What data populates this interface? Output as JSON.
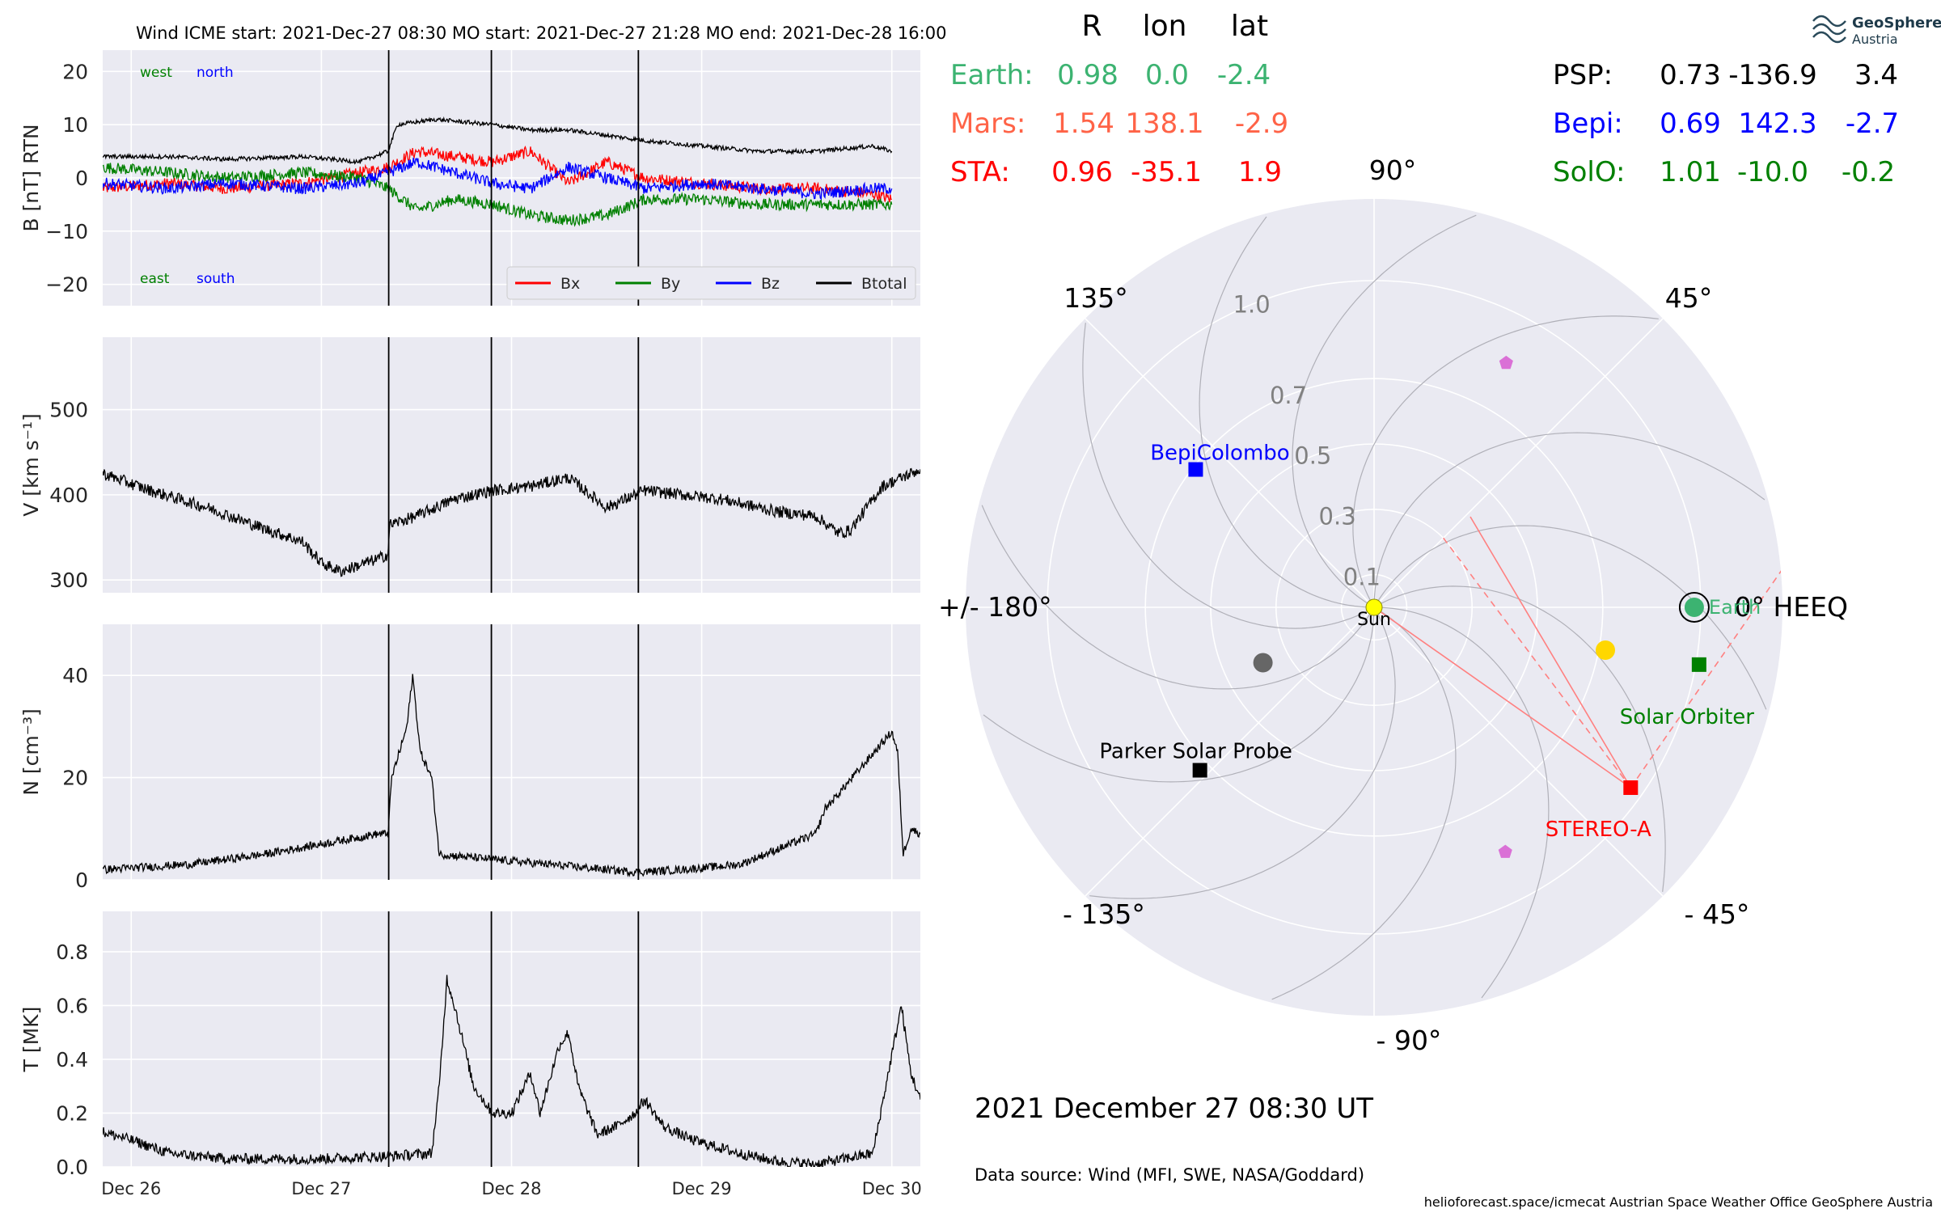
{
  "header": {
    "title": "Wind    ICME start: 2021-Dec-27 08:30   MO start: 2021-Dec-27 21:28   MO end: 2021-Dec-28 16:00"
  },
  "logo": {
    "line1": "GeoSphere",
    "line2": "Austria"
  },
  "positions_table": {
    "headers": [
      "R",
      "lon",
      "lat"
    ],
    "left_rows": [
      {
        "name": "Earth:",
        "r": "0.98",
        "lon": "0.0",
        "lat": "-2.4",
        "color": "#3cb371"
      },
      {
        "name": "Mars:",
        "r": "1.54",
        "lon": "138.1",
        "lat": "-2.9",
        "color": "#ff6347"
      },
      {
        "name": "STA:",
        "r": "0.96",
        "lon": "-35.1",
        "lat": "1.9",
        "color": "#ff0000"
      }
    ],
    "right_rows": [
      {
        "name": "PSP:",
        "r": "0.73",
        "lon": "-136.9",
        "lat": "3.4",
        "color": "#000000"
      },
      {
        "name": "Bepi:",
        "r": "0.69",
        "lon": "142.3",
        "lat": "-2.7",
        "color": "#0000ff"
      },
      {
        "name": "SolO:",
        "r": "1.01",
        "lon": "-10.0",
        "lat": "-0.2",
        "color": "#008000"
      }
    ]
  },
  "footer": {
    "date": "2021 December 27  08:30 UT",
    "source": "Data source: Wind (MFI, SWE, NASA/Goddard)",
    "credits": "helioforecast.space/icmecat   Austrian Space Weather Office   GeoSphere Austria"
  },
  "chart_data": [
    {
      "type": "line",
      "panel": "B",
      "ylabel": "B [nT] RTN",
      "ylim": [
        -24,
        24
      ],
      "yticks": [
        "20",
        "10",
        "0",
        "−10",
        "−20"
      ],
      "ytick_values": [
        20,
        10,
        0,
        -10,
        -20
      ],
      "xlim_days": [
        25.85,
        30.15
      ],
      "xticks": [
        "Dec 26",
        "Dec 27",
        "Dec 28",
        "Dec 29",
        "Dec 30"
      ],
      "xtick_days": [
        26,
        27,
        28,
        29,
        30
      ],
      "event_lines_days": [
        27.354,
        27.894,
        28.667
      ],
      "corner_labels": {
        "west": "west",
        "north": "north",
        "east": "east",
        "south": "south"
      },
      "legend": [
        "Bx",
        "By",
        "Bz",
        "Btotal"
      ],
      "series": [
        {
          "name": "Bx",
          "color": "#ff0000",
          "values": [
            [
              25.85,
              -2
            ],
            [
              26.2,
              -1
            ],
            [
              26.5,
              -2
            ],
            [
              26.9,
              -1
            ],
            [
              27.2,
              1
            ],
            [
              27.35,
              2
            ],
            [
              27.5,
              5
            ],
            [
              27.7,
              4
            ],
            [
              27.9,
              3
            ],
            [
              28.1,
              5
            ],
            [
              28.3,
              -1
            ],
            [
              28.5,
              3
            ],
            [
              28.7,
              0
            ],
            [
              29.0,
              -1
            ],
            [
              29.3,
              -2
            ],
            [
              29.6,
              -2
            ],
            [
              29.9,
              -3
            ],
            [
              30.0,
              -4
            ]
          ]
        },
        {
          "name": "By",
          "color": "#008000",
          "values": [
            [
              25.85,
              2
            ],
            [
              26.2,
              1
            ],
            [
              26.5,
              0
            ],
            [
              26.9,
              1
            ],
            [
              27.2,
              0
            ],
            [
              27.35,
              -2
            ],
            [
              27.5,
              -6
            ],
            [
              27.7,
              -4
            ],
            [
              27.9,
              -5
            ],
            [
              28.1,
              -7
            ],
            [
              28.3,
              -8
            ],
            [
              28.5,
              -7
            ],
            [
              28.7,
              -4
            ],
            [
              29.0,
              -4
            ],
            [
              29.3,
              -5
            ],
            [
              29.6,
              -5
            ],
            [
              29.9,
              -5
            ],
            [
              30.0,
              -5
            ]
          ]
        },
        {
          "name": "Bz",
          "color": "#0000ff",
          "values": [
            [
              25.85,
              -1
            ],
            [
              26.2,
              -2
            ],
            [
              26.5,
              -1
            ],
            [
              26.9,
              -2
            ],
            [
              27.2,
              -1
            ],
            [
              27.35,
              1
            ],
            [
              27.5,
              3
            ],
            [
              27.7,
              1
            ],
            [
              27.9,
              -1
            ],
            [
              28.1,
              -2
            ],
            [
              28.3,
              2
            ],
            [
              28.5,
              0
            ],
            [
              28.7,
              -2
            ],
            [
              29.0,
              -1
            ],
            [
              29.3,
              -2
            ],
            [
              29.6,
              -3
            ],
            [
              29.9,
              -2
            ],
            [
              30.0,
              -2
            ]
          ]
        },
        {
          "name": "Btotal",
          "color": "#000000",
          "values": [
            [
              25.85,
              4
            ],
            [
              26.2,
              4
            ],
            [
              26.5,
              3.5
            ],
            [
              26.9,
              4
            ],
            [
              27.2,
              3
            ],
            [
              27.35,
              5
            ],
            [
              27.4,
              10
            ],
            [
              27.6,
              11
            ],
            [
              27.9,
              10
            ],
            [
              28.1,
              9
            ],
            [
              28.3,
              9
            ],
            [
              28.5,
              8
            ],
            [
              28.7,
              7
            ],
            [
              29.0,
              6
            ],
            [
              29.3,
              5
            ],
            [
              29.6,
              5
            ],
            [
              29.9,
              6
            ],
            [
              30.0,
              5
            ]
          ]
        }
      ]
    },
    {
      "type": "line",
      "panel": "V",
      "ylabel": "V [km s⁻¹]",
      "ylim": [
        285,
        585
      ],
      "yticks": [
        "500",
        "400",
        "300"
      ],
      "ytick_values": [
        500,
        400,
        300
      ],
      "event_lines_days": [
        27.354,
        27.894,
        28.667
      ],
      "series": [
        {
          "name": "V",
          "color": "#000000",
          "values": [
            [
              25.85,
              425
            ],
            [
              26.1,
              405
            ],
            [
              26.4,
              385
            ],
            [
              26.7,
              360
            ],
            [
              26.9,
              345
            ],
            [
              27.0,
              320
            ],
            [
              27.1,
              310
            ],
            [
              27.3,
              325
            ],
            [
              27.35,
              330
            ],
            [
              27.36,
              365
            ],
            [
              27.5,
              375
            ],
            [
              27.7,
              395
            ],
            [
              27.9,
              405
            ],
            [
              28.1,
              410
            ],
            [
              28.3,
              420
            ],
            [
              28.5,
              385
            ],
            [
              28.7,
              405
            ],
            [
              28.9,
              400
            ],
            [
              29.1,
              395
            ],
            [
              29.4,
              380
            ],
            [
              29.6,
              375
            ],
            [
              29.72,
              355
            ],
            [
              29.78,
              358
            ],
            [
              29.95,
              410
            ],
            [
              30.05,
              420
            ],
            [
              30.15,
              430
            ]
          ]
        }
      ]
    },
    {
      "type": "line",
      "panel": "N",
      "ylabel": "N [cm⁻³]",
      "ylim": [
        0,
        50
      ],
      "yticks": [
        "40",
        "20",
        "0"
      ],
      "ytick_values": [
        40,
        20,
        0
      ],
      "event_lines_days": [
        27.354,
        27.894,
        28.667
      ],
      "series": [
        {
          "name": "N",
          "color": "#000000",
          "values": [
            [
              25.85,
              2
            ],
            [
              26.3,
              3
            ],
            [
              26.7,
              5
            ],
            [
              27.0,
              7
            ],
            [
              27.3,
              9
            ],
            [
              27.35,
              9
            ],
            [
              27.37,
              20
            ],
            [
              27.45,
              30
            ],
            [
              27.48,
              40
            ],
            [
              27.52,
              25
            ],
            [
              27.58,
              20
            ],
            [
              27.62,
              5
            ],
            [
              27.9,
              4
            ],
            [
              28.2,
              3
            ],
            [
              28.5,
              2
            ],
            [
              28.66,
              1.5
            ],
            [
              28.9,
              2
            ],
            [
              29.2,
              3
            ],
            [
              29.4,
              6
            ],
            [
              29.6,
              9
            ],
            [
              29.65,
              14
            ],
            [
              29.7,
              16
            ],
            [
              30.0,
              29
            ],
            [
              30.03,
              25
            ],
            [
              30.06,
              5
            ],
            [
              30.1,
              10
            ],
            [
              30.15,
              9
            ]
          ]
        }
      ]
    },
    {
      "type": "line",
      "panel": "T",
      "ylabel": "T [MK]",
      "ylim": [
        0,
        0.95
      ],
      "yticks": [
        "0.8",
        "0.6",
        "0.4",
        "0.2",
        "0.0"
      ],
      "ytick_values": [
        0.8,
        0.6,
        0.4,
        0.2,
        0
      ],
      "event_lines_days": [
        27.354,
        27.894,
        28.667
      ],
      "series": [
        {
          "name": "T",
          "color": "#000000",
          "values": [
            [
              25.85,
              0.13
            ],
            [
              26.0,
              0.1
            ],
            [
              26.2,
              0.05
            ],
            [
              26.5,
              0.03
            ],
            [
              27.0,
              0.03
            ],
            [
              27.35,
              0.04
            ],
            [
              27.58,
              0.05
            ],
            [
              27.62,
              0.3
            ],
            [
              27.66,
              0.7
            ],
            [
              27.7,
              0.6
            ],
            [
              27.8,
              0.3
            ],
            [
              27.9,
              0.2
            ],
            [
              28.0,
              0.2
            ],
            [
              28.1,
              0.35
            ],
            [
              28.15,
              0.2
            ],
            [
              28.25,
              0.45
            ],
            [
              28.3,
              0.5
            ],
            [
              28.35,
              0.3
            ],
            [
              28.45,
              0.12
            ],
            [
              28.55,
              0.15
            ],
            [
              28.65,
              0.2
            ],
            [
              28.7,
              0.25
            ],
            [
              28.8,
              0.15
            ],
            [
              28.95,
              0.1
            ],
            [
              29.2,
              0.05
            ],
            [
              29.4,
              0.02
            ],
            [
              29.6,
              0.01
            ],
            [
              29.9,
              0.05
            ],
            [
              30.05,
              0.6
            ],
            [
              30.1,
              0.35
            ],
            [
              30.15,
              0.25
            ]
          ]
        }
      ]
    },
    {
      "type": "scatter",
      "panel": "polar",
      "r_ticks": [
        "0.1",
        "0.3",
        "0.5",
        "0.7",
        "1.0"
      ],
      "r_tick_values": [
        0.1,
        0.3,
        0.5,
        0.7,
        1.0
      ],
      "angle_labels": {
        "a0": "0° HEEQ",
        "a45": "45°",
        "a90": "90°",
        "a135": "135°",
        "a180": "+/- 180°",
        "am135": "- 135°",
        "am90": "- 90°",
        "am45": "- 45°"
      },
      "objects": [
        {
          "name": "Sun",
          "label": "Sun",
          "r": 0,
          "lon": 0,
          "color": "#ffff00",
          "marker": "circle"
        },
        {
          "name": "Earth",
          "label": "Earth",
          "r": 0.98,
          "lon": 0.0,
          "color": "#3cb371",
          "marker": "circle"
        },
        {
          "name": "STEREO-A",
          "label": "STEREO-A",
          "r": 0.96,
          "lon": -35.1,
          "color": "#ff0000",
          "marker": "square"
        },
        {
          "name": "Solar Orbiter",
          "label": "Solar Orbiter",
          "r": 1.01,
          "lon": -10.0,
          "color": "#008000",
          "marker": "square"
        },
        {
          "name": "BepiColombo",
          "label": "BepiColombo",
          "r": 0.69,
          "lon": 142.3,
          "color": "#0000ff",
          "marker": "square"
        },
        {
          "name": "Parker Solar Probe",
          "label": "Parker Solar Probe",
          "r": 0.73,
          "lon": -136.9,
          "color": "#000000",
          "marker": "square"
        },
        {
          "name": "Venus",
          "label": "",
          "r": 0.72,
          "lon": -10.5,
          "color": "#ffd700",
          "marker": "circle"
        },
        {
          "name": "Mercury",
          "label": "",
          "r": 0.38,
          "lon": -153.5,
          "color": "#666666",
          "marker": "circle"
        },
        {
          "name": "marker-north",
          "label": "",
          "r": 0.85,
          "lon": 61.6,
          "color": "#da70d6",
          "marker": "pentagon"
        },
        {
          "name": "marker-south",
          "label": "",
          "r": 0.85,
          "lon": -61.8,
          "color": "#da70d6",
          "marker": "pentagon"
        }
      ]
    }
  ]
}
